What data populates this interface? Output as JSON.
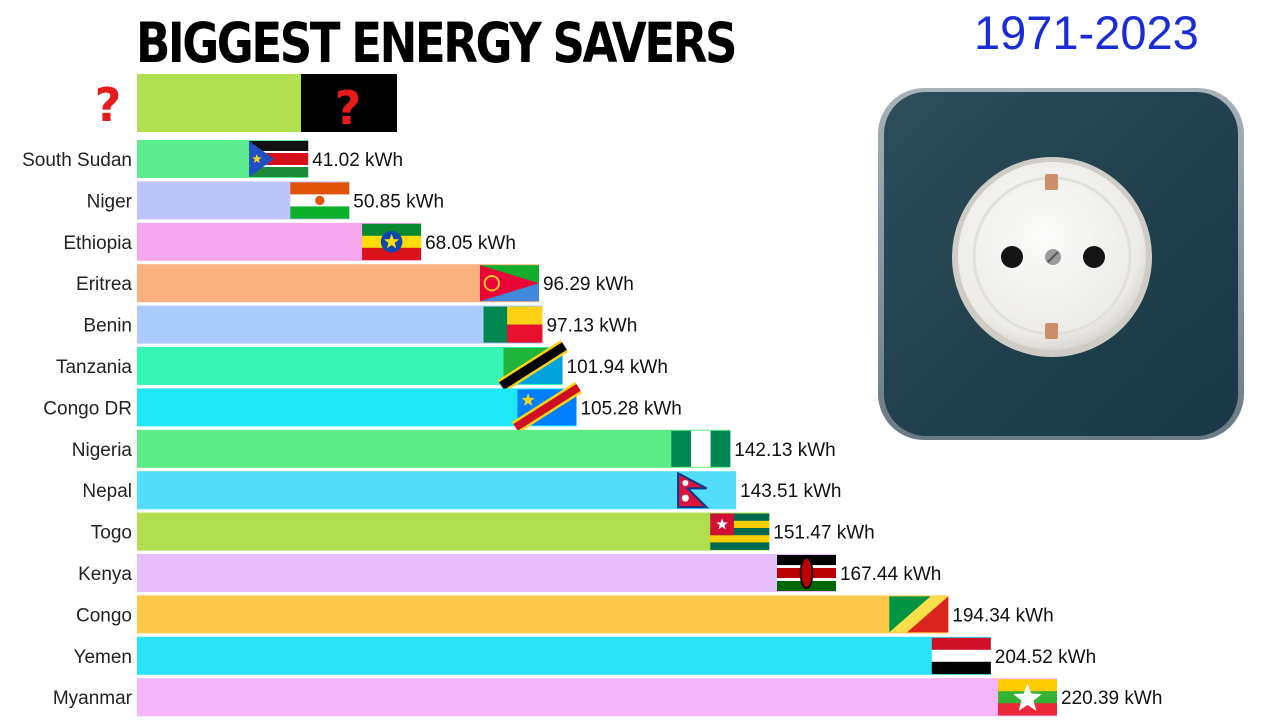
{
  "header": {
    "title": "BIGGEST ENERGY SAVERS",
    "year_range": "1971-2023"
  },
  "mystery": {
    "label": "?",
    "flag_label": "?",
    "bar_color": "#b0e04f"
  },
  "chart_data": {
    "type": "bar",
    "orientation": "horizontal",
    "unit": "kWh",
    "categories": [
      "South Sudan",
      "Niger",
      "Ethiopia",
      "Eritrea",
      "Benin",
      "Tanzania",
      "Congo DR",
      "Nigeria",
      "Nepal",
      "Togo",
      "Kenya",
      "Congo",
      "Yemen",
      "Myanmar"
    ],
    "values": [
      41.02,
      50.85,
      68.05,
      96.29,
      97.13,
      101.94,
      105.28,
      142.13,
      143.51,
      151.47,
      167.44,
      194.34,
      204.52,
      220.39
    ],
    "value_labels": [
      "41.02 kWh",
      "50.85 kWh",
      "68.05 kWh",
      "96.29 kWh",
      "97.13 kWh",
      "101.94 kWh",
      "105.28 kWh",
      "142.13 kWh",
      "143.51 kWh",
      "151.47 kWh",
      "167.44 kWh",
      "194.34 kWh",
      "204.52 kWh",
      "220.39 kWh"
    ],
    "colors": [
      "#5deb8f",
      "#bcc5fb",
      "#f7a7f0",
      "#f8b07e",
      "#aacbfb",
      "#36f4b4",
      "#1fe7f7",
      "#5ceb85",
      "#52def9",
      "#b0de4f",
      "#e8bdfc",
      "#fec94a",
      "#2ae3f8",
      "#f6b5fb"
    ],
    "flags": [
      "south-sudan-flag",
      "niger-flag",
      "ethiopia-flag",
      "eritrea-flag",
      "benin-flag",
      "tanzania-flag",
      "congo-dr-flag",
      "nigeria-flag",
      "nepal-flag",
      "togo-flag",
      "kenya-flag",
      "congo-flag",
      "yemen-flag",
      "myanmar-flag"
    ],
    "xlim": [
      0,
      220.39
    ],
    "title": "BIGGEST ENERGY SAVERS",
    "subtitle": "1971-2023",
    "grid": false,
    "legend": "none"
  }
}
